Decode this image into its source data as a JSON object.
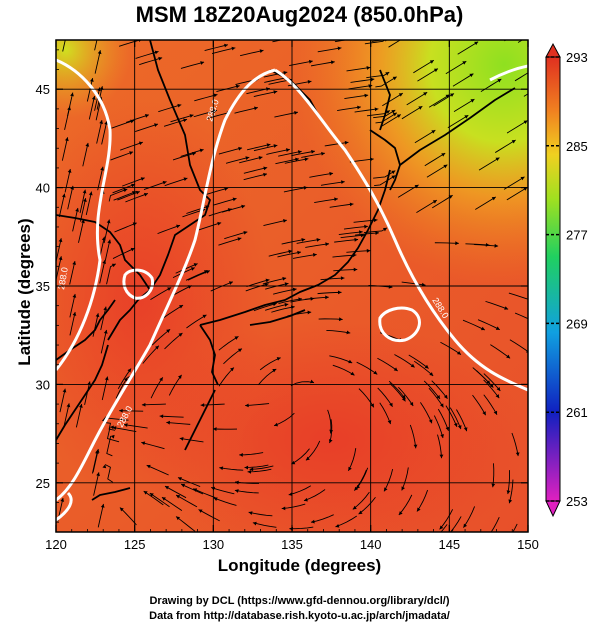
{
  "title": "MSM 18Z20Aug2024 (850.0hPa)",
  "x_axis": {
    "label": "Longitude (degrees)",
    "ticks": [
      "120",
      "125",
      "130",
      "135",
      "140",
      "145",
      "150"
    ],
    "range": [
      120,
      150
    ]
  },
  "y_axis": {
    "label": "Latitude  (degrees)",
    "ticks": [
      "25",
      "30",
      "35",
      "40",
      "45"
    ],
    "range": [
      22.5,
      47.5
    ]
  },
  "colorbar": {
    "ticks": [
      "293",
      "285",
      "277",
      "269",
      "261",
      "253"
    ],
    "range": [
      253,
      293
    ],
    "colors": [
      "#e020c0",
      "#1020c0",
      "#10a0e0",
      "#20d060",
      "#a0e020",
      "#f0d020",
      "#f08020",
      "#e03020"
    ]
  },
  "contour_labels": [
    "288.0",
    "288.0",
    "288.0",
    "288.0"
  ],
  "credits": {
    "line1": "Drawing by DCL (https://www.gfd-dennou.org/library/dcl/)",
    "line2": "Data from http://database.rish.kyoto-u.ac.jp/arch/jmadata/"
  }
}
